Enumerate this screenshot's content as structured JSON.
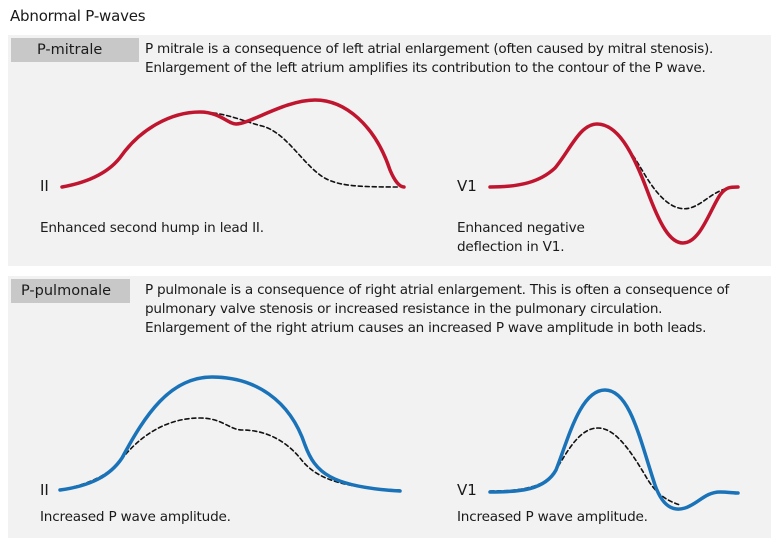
{
  "title": "Abnormal P-waves",
  "mitrale": {
    "badge": "P-mitrale",
    "description": "P mitrale is a consequence of left atrial enlargement (often caused by mitral stenosis).\nEnlargement of the left atrium amplifies its contribution to the contour of the P wave.",
    "lead_ii": "II",
    "lead_v1": "V1",
    "caption_ii": "Enhanced second hump in lead II.",
    "caption_v1": "Enhanced negative\ndeflection in V1.",
    "color": "#c0152f"
  },
  "pulmonale": {
    "badge": "P-pulmonale",
    "description": "P pulmonale is a consequence of right atrial enlargement. This is often a consequence of\npulmonary valve stenosis or increased resistance in the pulmonary circulation.\nEnlargement of the right atrium causes an increased P wave amplitude in both leads.",
    "lead_ii": "II",
    "lead_v1": "V1",
    "caption_ii": "Increased P wave amplitude.",
    "caption_v1": "Increased P wave amplitude.",
    "color": "#1a73b8"
  },
  "reference_line_color": "#111111"
}
